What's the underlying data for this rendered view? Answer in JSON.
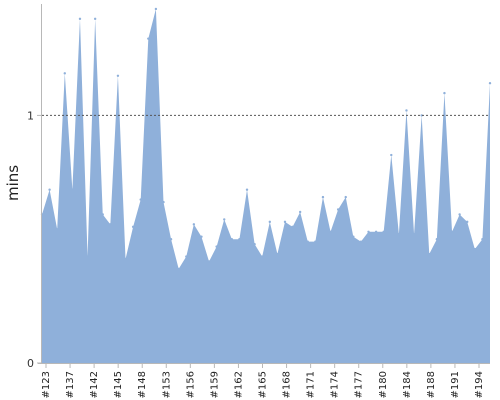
{
  "chart_data": {
    "type": "area",
    "title": "",
    "ylabel": "mins",
    "xlabel": "",
    "ylim": [
      0,
      1.45
    ],
    "y_ticks": [
      {
        "value": 0,
        "label": "0"
      },
      {
        "value": 1,
        "label": "1"
      }
    ],
    "reference_line": {
      "value": 1,
      "style": "dashed"
    },
    "grid": false,
    "fill_color": "#8fb0da",
    "x_labels": [
      "#123",
      "#137",
      "#142",
      "#145",
      "#148",
      "#153",
      "#156",
      "#159",
      "#162",
      "#165",
      "#168",
      "#171",
      "#174",
      "#177",
      "#180",
      "#184",
      "#188",
      "#191",
      "#194"
    ],
    "series": [
      {
        "values": [
          0.6,
          0.7,
          0.54,
          1.17,
          0.7,
          1.39,
          0.43,
          1.39,
          0.6,
          0.56,
          1.16,
          0.42,
          0.55,
          0.66,
          1.31,
          1.43,
          0.65,
          0.5,
          0.38,
          0.43,
          0.56,
          0.51,
          0.41,
          0.47,
          0.58,
          0.5,
          0.5,
          0.7,
          0.48,
          0.43,
          0.57,
          0.44,
          0.57,
          0.55,
          0.61,
          0.49,
          0.49,
          0.67,
          0.53,
          0.62,
          0.67,
          0.51,
          0.49,
          0.53,
          0.53,
          0.53,
          0.84,
          0.52,
          1.02,
          0.52,
          1.0,
          0.44,
          0.5,
          1.09,
          0.53,
          0.6,
          0.57,
          0.46,
          0.5,
          1.13
        ]
      }
    ]
  }
}
